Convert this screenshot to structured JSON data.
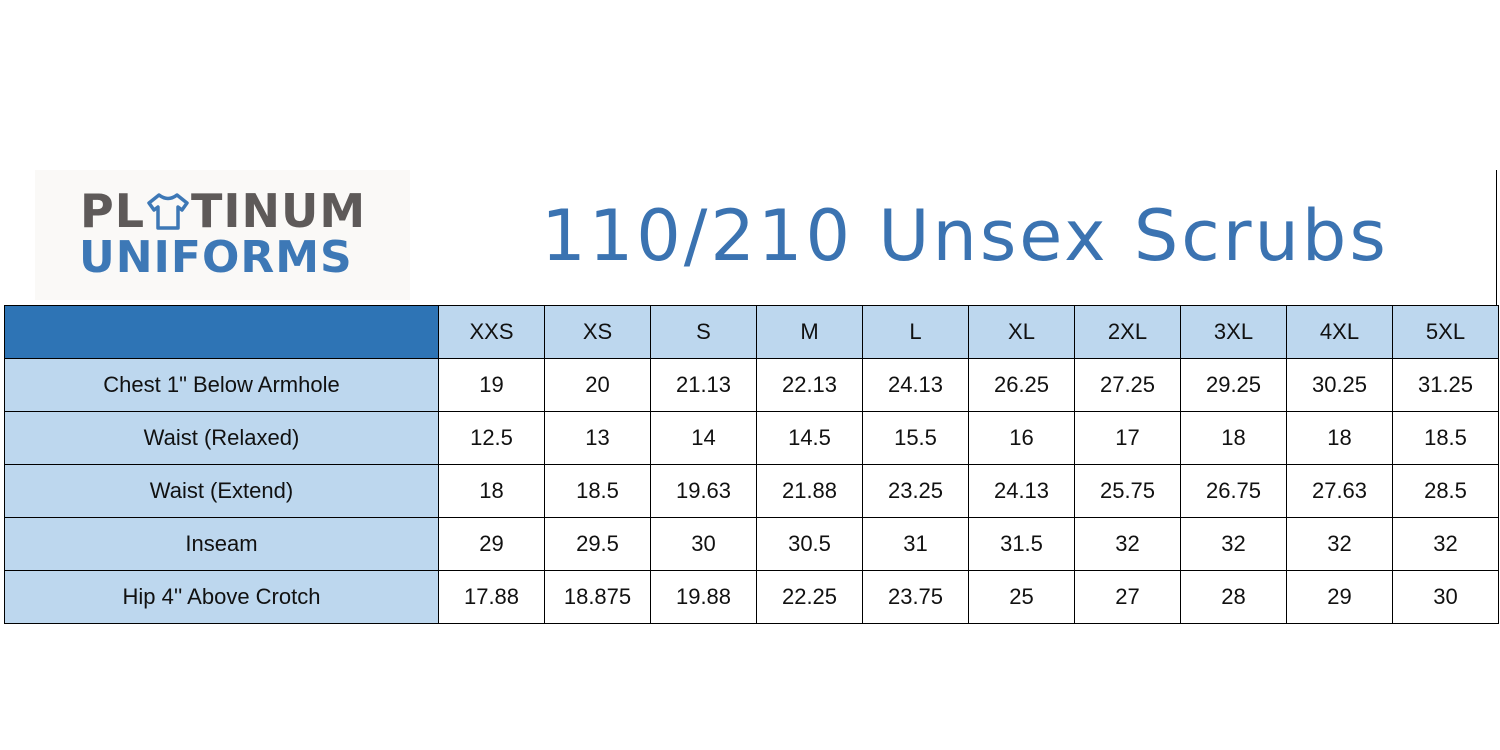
{
  "logo": {
    "line1": [
      "PL",
      "TINUM"
    ],
    "line2": "UNIFORMS"
  },
  "title": "110/210 Unsex Scrubs",
  "table": {
    "header": [
      "XXS",
      "XS",
      "S",
      "M",
      "L",
      "XL",
      "2XL",
      "3XL",
      "4XL",
      "5XL"
    ],
    "rows": [
      {
        "label": "Chest 1\" Below Armhole",
        "values": [
          19,
          20,
          21.13,
          22.13,
          24.13,
          26.25,
          27.25,
          29.25,
          30.25,
          31.25
        ]
      },
      {
        "label": "Waist (Relaxed)",
        "values": [
          12.5,
          13,
          14,
          14.5,
          15.5,
          16,
          17,
          18,
          18,
          18.5
        ]
      },
      {
        "label": "Waist (Extend)",
        "values": [
          18,
          18.5,
          19.63,
          21.88,
          23.25,
          24.13,
          25.75,
          26.75,
          27.63,
          28.5
        ]
      },
      {
        "label": "Inseam",
        "values": [
          29,
          29.5,
          30,
          30.5,
          31,
          31.5,
          32,
          32,
          32,
          32
        ]
      },
      {
        "label": "Hip  4'' Above Crotch",
        "values": [
          17.88,
          18.875,
          19.88,
          22.25,
          23.75,
          25,
          27,
          28,
          29,
          30
        ]
      }
    ]
  }
}
